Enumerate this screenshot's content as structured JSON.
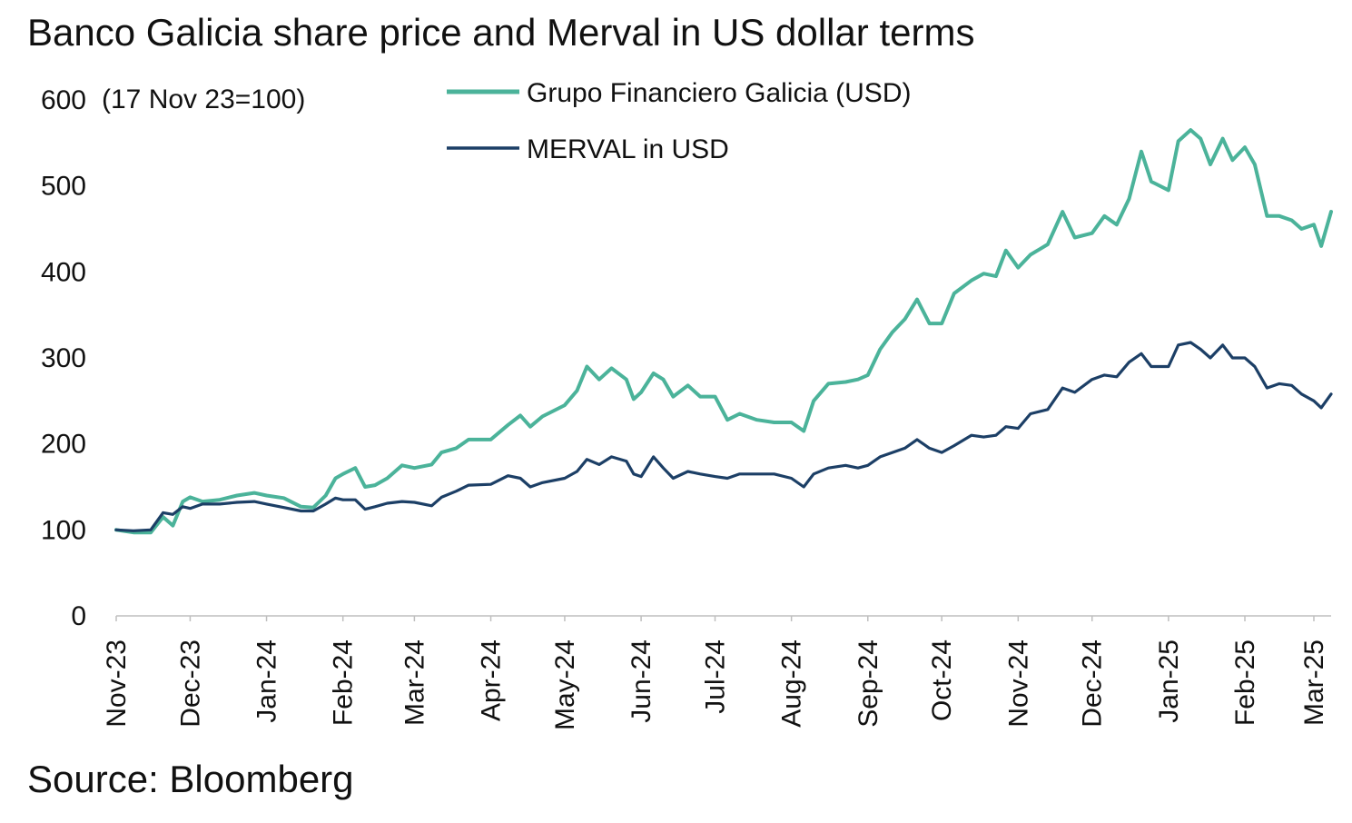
{
  "chart_data": {
    "type": "line",
    "title": "Banco Galicia share price and Merval in US dollar terms",
    "ylabel": "(17 Nov 23=100)",
    "source": "Source: Bloomberg",
    "ylim": [
      0,
      600
    ],
    "yticks": [
      0,
      100,
      200,
      300,
      400,
      500,
      600
    ],
    "x_axis": {
      "range": [
        "2023-11-17",
        "2025-03-24"
      ],
      "tick_labels": [
        {
          "date": "2023-11-17",
          "label": "Nov-23"
        },
        {
          "date": "2023-12-17",
          "label": "Dec-23"
        },
        {
          "date": "2024-01-17",
          "label": "Jan-24"
        },
        {
          "date": "2024-02-17",
          "label": "Feb-24"
        },
        {
          "date": "2024-03-17",
          "label": "Mar-24"
        },
        {
          "date": "2024-04-17",
          "label": "Apr-24"
        },
        {
          "date": "2024-05-17",
          "label": "May-24"
        },
        {
          "date": "2024-06-17",
          "label": "Jun-24"
        },
        {
          "date": "2024-07-17",
          "label": "Jul-24"
        },
        {
          "date": "2024-08-17",
          "label": "Aug-24"
        },
        {
          "date": "2024-09-17",
          "label": "Sep-24"
        },
        {
          "date": "2024-10-17",
          "label": "Oct-24"
        },
        {
          "date": "2024-11-17",
          "label": "Nov-24"
        },
        {
          "date": "2024-12-17",
          "label": "Dec-24"
        },
        {
          "date": "2025-01-17",
          "label": "Jan-25"
        },
        {
          "date": "2025-02-17",
          "label": "Feb-25"
        },
        {
          "date": "2025-03-17",
          "label": "Mar-25"
        }
      ]
    },
    "legend": {
      "placement": "top-center"
    },
    "grid": false,
    "series": [
      {
        "name": "Grupo Financiero Galicia (USD)",
        "color": "#4bb39a",
        "points": [
          [
            "2023-11-17",
            100
          ],
          [
            "2023-11-24",
            97
          ],
          [
            "2023-12-01",
            97
          ],
          [
            "2023-12-06",
            115
          ],
          [
            "2023-12-10",
            105
          ],
          [
            "2023-12-14",
            133
          ],
          [
            "2023-12-17",
            138
          ],
          [
            "2023-12-22",
            133
          ],
          [
            "2023-12-29",
            135
          ],
          [
            "2024-01-05",
            140
          ],
          [
            "2024-01-12",
            143
          ],
          [
            "2024-01-17",
            140
          ],
          [
            "2024-01-24",
            137
          ],
          [
            "2024-01-31",
            127
          ],
          [
            "2024-02-05",
            126
          ],
          [
            "2024-02-10",
            140
          ],
          [
            "2024-02-14",
            160
          ],
          [
            "2024-02-17",
            165
          ],
          [
            "2024-02-22",
            172
          ],
          [
            "2024-02-26",
            150
          ],
          [
            "2024-03-01",
            152
          ],
          [
            "2024-03-06",
            160
          ],
          [
            "2024-03-12",
            175
          ],
          [
            "2024-03-17",
            172
          ],
          [
            "2024-03-24",
            176
          ],
          [
            "2024-03-28",
            190
          ],
          [
            "2024-04-03",
            195
          ],
          [
            "2024-04-08",
            205
          ],
          [
            "2024-04-17",
            205
          ],
          [
            "2024-04-24",
            222
          ],
          [
            "2024-04-29",
            233
          ],
          [
            "2024-05-03",
            220
          ],
          [
            "2024-05-08",
            232
          ],
          [
            "2024-05-17",
            245
          ],
          [
            "2024-05-22",
            262
          ],
          [
            "2024-05-26",
            290
          ],
          [
            "2024-05-31",
            275
          ],
          [
            "2024-06-05",
            288
          ],
          [
            "2024-06-11",
            275
          ],
          [
            "2024-06-14",
            252
          ],
          [
            "2024-06-17",
            260
          ],
          [
            "2024-06-22",
            282
          ],
          [
            "2024-06-26",
            275
          ],
          [
            "2024-06-30",
            255
          ],
          [
            "2024-07-06",
            268
          ],
          [
            "2024-07-11",
            255
          ],
          [
            "2024-07-17",
            255
          ],
          [
            "2024-07-22",
            228
          ],
          [
            "2024-07-27",
            235
          ],
          [
            "2024-08-03",
            228
          ],
          [
            "2024-08-10",
            225
          ],
          [
            "2024-08-17",
            225
          ],
          [
            "2024-08-22",
            215
          ],
          [
            "2024-08-26",
            250
          ],
          [
            "2024-09-01",
            270
          ],
          [
            "2024-09-08",
            272
          ],
          [
            "2024-09-13",
            275
          ],
          [
            "2024-09-17",
            280
          ],
          [
            "2024-09-22",
            310
          ],
          [
            "2024-09-27",
            330
          ],
          [
            "2024-10-02",
            345
          ],
          [
            "2024-10-07",
            368
          ],
          [
            "2024-10-12",
            340
          ],
          [
            "2024-10-17",
            340
          ],
          [
            "2024-10-22",
            375
          ],
          [
            "2024-10-29",
            390
          ],
          [
            "2024-11-03",
            398
          ],
          [
            "2024-11-08",
            395
          ],
          [
            "2024-11-12",
            425
          ],
          [
            "2024-11-17",
            405
          ],
          [
            "2024-11-22",
            420
          ],
          [
            "2024-11-29",
            432
          ],
          [
            "2024-12-05",
            470
          ],
          [
            "2024-12-10",
            440
          ],
          [
            "2024-12-17",
            445
          ],
          [
            "2024-12-22",
            465
          ],
          [
            "2024-12-27",
            455
          ],
          [
            "2025-01-01",
            485
          ],
          [
            "2025-01-06",
            540
          ],
          [
            "2025-01-10",
            505
          ],
          [
            "2025-01-17",
            495
          ],
          [
            "2025-01-21",
            552
          ],
          [
            "2025-01-26",
            565
          ],
          [
            "2025-01-30",
            555
          ],
          [
            "2025-02-03",
            525
          ],
          [
            "2025-02-08",
            555
          ],
          [
            "2025-02-12",
            530
          ],
          [
            "2025-02-17",
            545
          ],
          [
            "2025-02-21",
            525
          ],
          [
            "2025-02-26",
            465
          ],
          [
            "2025-03-03",
            465
          ],
          [
            "2025-03-08",
            460
          ],
          [
            "2025-03-12",
            450
          ],
          [
            "2025-03-17",
            455
          ],
          [
            "2025-03-20",
            430
          ],
          [
            "2025-03-24",
            470
          ]
        ]
      },
      {
        "name": "MERVAL in USD",
        "color": "#1c3f66",
        "points": [
          [
            "2023-11-17",
            100
          ],
          [
            "2023-11-24",
            99
          ],
          [
            "2023-12-01",
            100
          ],
          [
            "2023-12-06",
            120
          ],
          [
            "2023-12-10",
            118
          ],
          [
            "2023-12-14",
            127
          ],
          [
            "2023-12-17",
            125
          ],
          [
            "2023-12-22",
            130
          ],
          [
            "2023-12-29",
            130
          ],
          [
            "2024-01-05",
            132
          ],
          [
            "2024-01-12",
            133
          ],
          [
            "2024-01-17",
            130
          ],
          [
            "2024-01-24",
            126
          ],
          [
            "2024-01-31",
            122
          ],
          [
            "2024-02-05",
            122
          ],
          [
            "2024-02-10",
            130
          ],
          [
            "2024-02-14",
            137
          ],
          [
            "2024-02-17",
            135
          ],
          [
            "2024-02-22",
            135
          ],
          [
            "2024-02-26",
            124
          ],
          [
            "2024-03-01",
            127
          ],
          [
            "2024-03-06",
            131
          ],
          [
            "2024-03-12",
            133
          ],
          [
            "2024-03-17",
            132
          ],
          [
            "2024-03-24",
            128
          ],
          [
            "2024-03-28",
            138
          ],
          [
            "2024-04-03",
            145
          ],
          [
            "2024-04-08",
            152
          ],
          [
            "2024-04-17",
            153
          ],
          [
            "2024-04-24",
            163
          ],
          [
            "2024-04-29",
            160
          ],
          [
            "2024-05-03",
            150
          ],
          [
            "2024-05-08",
            155
          ],
          [
            "2024-05-17",
            160
          ],
          [
            "2024-05-22",
            168
          ],
          [
            "2024-05-26",
            182
          ],
          [
            "2024-05-31",
            176
          ],
          [
            "2024-06-05",
            185
          ],
          [
            "2024-06-11",
            180
          ],
          [
            "2024-06-14",
            165
          ],
          [
            "2024-06-17",
            162
          ],
          [
            "2024-06-22",
            185
          ],
          [
            "2024-06-26",
            172
          ],
          [
            "2024-06-30",
            160
          ],
          [
            "2024-07-06",
            168
          ],
          [
            "2024-07-11",
            165
          ],
          [
            "2024-07-17",
            162
          ],
          [
            "2024-07-22",
            160
          ],
          [
            "2024-07-27",
            165
          ],
          [
            "2024-08-03",
            165
          ],
          [
            "2024-08-10",
            165
          ],
          [
            "2024-08-17",
            160
          ],
          [
            "2024-08-22",
            150
          ],
          [
            "2024-08-26",
            165
          ],
          [
            "2024-09-01",
            172
          ],
          [
            "2024-09-08",
            175
          ],
          [
            "2024-09-13",
            172
          ],
          [
            "2024-09-17",
            175
          ],
          [
            "2024-09-22",
            185
          ],
          [
            "2024-09-27",
            190
          ],
          [
            "2024-10-02",
            195
          ],
          [
            "2024-10-07",
            205
          ],
          [
            "2024-10-12",
            195
          ],
          [
            "2024-10-17",
            190
          ],
          [
            "2024-10-22",
            198
          ],
          [
            "2024-10-29",
            210
          ],
          [
            "2024-11-03",
            208
          ],
          [
            "2024-11-08",
            210
          ],
          [
            "2024-11-12",
            220
          ],
          [
            "2024-11-17",
            218
          ],
          [
            "2024-11-22",
            235
          ],
          [
            "2024-11-29",
            240
          ],
          [
            "2024-12-05",
            265
          ],
          [
            "2024-12-10",
            260
          ],
          [
            "2024-12-17",
            275
          ],
          [
            "2024-12-22",
            280
          ],
          [
            "2024-12-27",
            278
          ],
          [
            "2025-01-01",
            295
          ],
          [
            "2025-01-06",
            305
          ],
          [
            "2025-01-10",
            290
          ],
          [
            "2025-01-17",
            290
          ],
          [
            "2025-01-21",
            315
          ],
          [
            "2025-01-26",
            318
          ],
          [
            "2025-01-30",
            310
          ],
          [
            "2025-02-03",
            300
          ],
          [
            "2025-02-08",
            315
          ],
          [
            "2025-02-12",
            300
          ],
          [
            "2025-02-17",
            300
          ],
          [
            "2025-02-21",
            290
          ],
          [
            "2025-02-26",
            265
          ],
          [
            "2025-03-03",
            270
          ],
          [
            "2025-03-08",
            268
          ],
          [
            "2025-03-12",
            258
          ],
          [
            "2025-03-17",
            250
          ],
          [
            "2025-03-20",
            242
          ],
          [
            "2025-03-24",
            258
          ]
        ]
      }
    ]
  }
}
